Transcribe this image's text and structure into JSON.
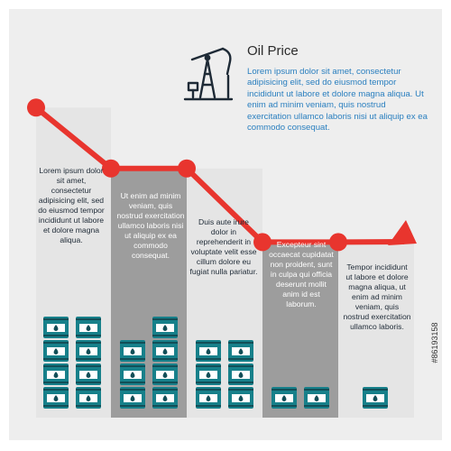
{
  "infographic": {
    "title": "Oil Price",
    "intro": "Lorem ipsum dolor sit amet, consectetur adipisicing elit, sed do eiusmod tempor incididunt ut labore et dolore magna aliqua. Ut enim ad minim veniam, quis nostrud exercitation ullamco laboris nisi ut aliquip ex ea commodo consequat.",
    "stock_id": "#86193158",
    "icon": "oil-pump-jack-icon"
  },
  "columns": [
    {
      "text": "Lorem ipsum dolor sit amet, consectetur adipisicing elit, sed do eiusmod tempor incididunt ut labore et dolore magna aliqua.",
      "barrels": [
        4,
        4
      ]
    },
    {
      "text": "Ut enim ad minim veniam, quis nostrud exercitation ullamco laboris nisi ut aliquip ex ea commodo consequat.",
      "barrels": [
        3,
        4
      ]
    },
    {
      "text": "Duis aute irure dolor in reprehenderit in voluptate velit esse cillum dolore eu fugiat nulla pariatur.",
      "barrels": [
        3,
        3
      ]
    },
    {
      "text": "Excepteur sint occaecat cupidatat non proident, sunt in culpa qui officia deserunt mollit anim id est laborum.",
      "barrels": [
        1,
        1
      ]
    },
    {
      "text": "Tempor incididunt ut labore et dolore magna aliqua, ut enim ad minim veniam, quis nostrud exercitation ullamco laboris.",
      "barrels": [
        1
      ]
    }
  ],
  "chart_data": {
    "type": "line",
    "x": [
      1,
      2,
      3,
      4,
      5
    ],
    "values": [
      9.4,
      7.5,
      7.5,
      5.2,
      5.2
    ],
    "ylim": [
      0,
      10
    ],
    "grid": false
  },
  "colors": {
    "frame": "#eeeeee",
    "col_light": "#e5e5e5",
    "col_dark": "#9d9d9d",
    "line": "#e8352e",
    "barrel": "#17808a",
    "barrel_band": "#124e57",
    "barrel_label": "#ffffff"
  }
}
